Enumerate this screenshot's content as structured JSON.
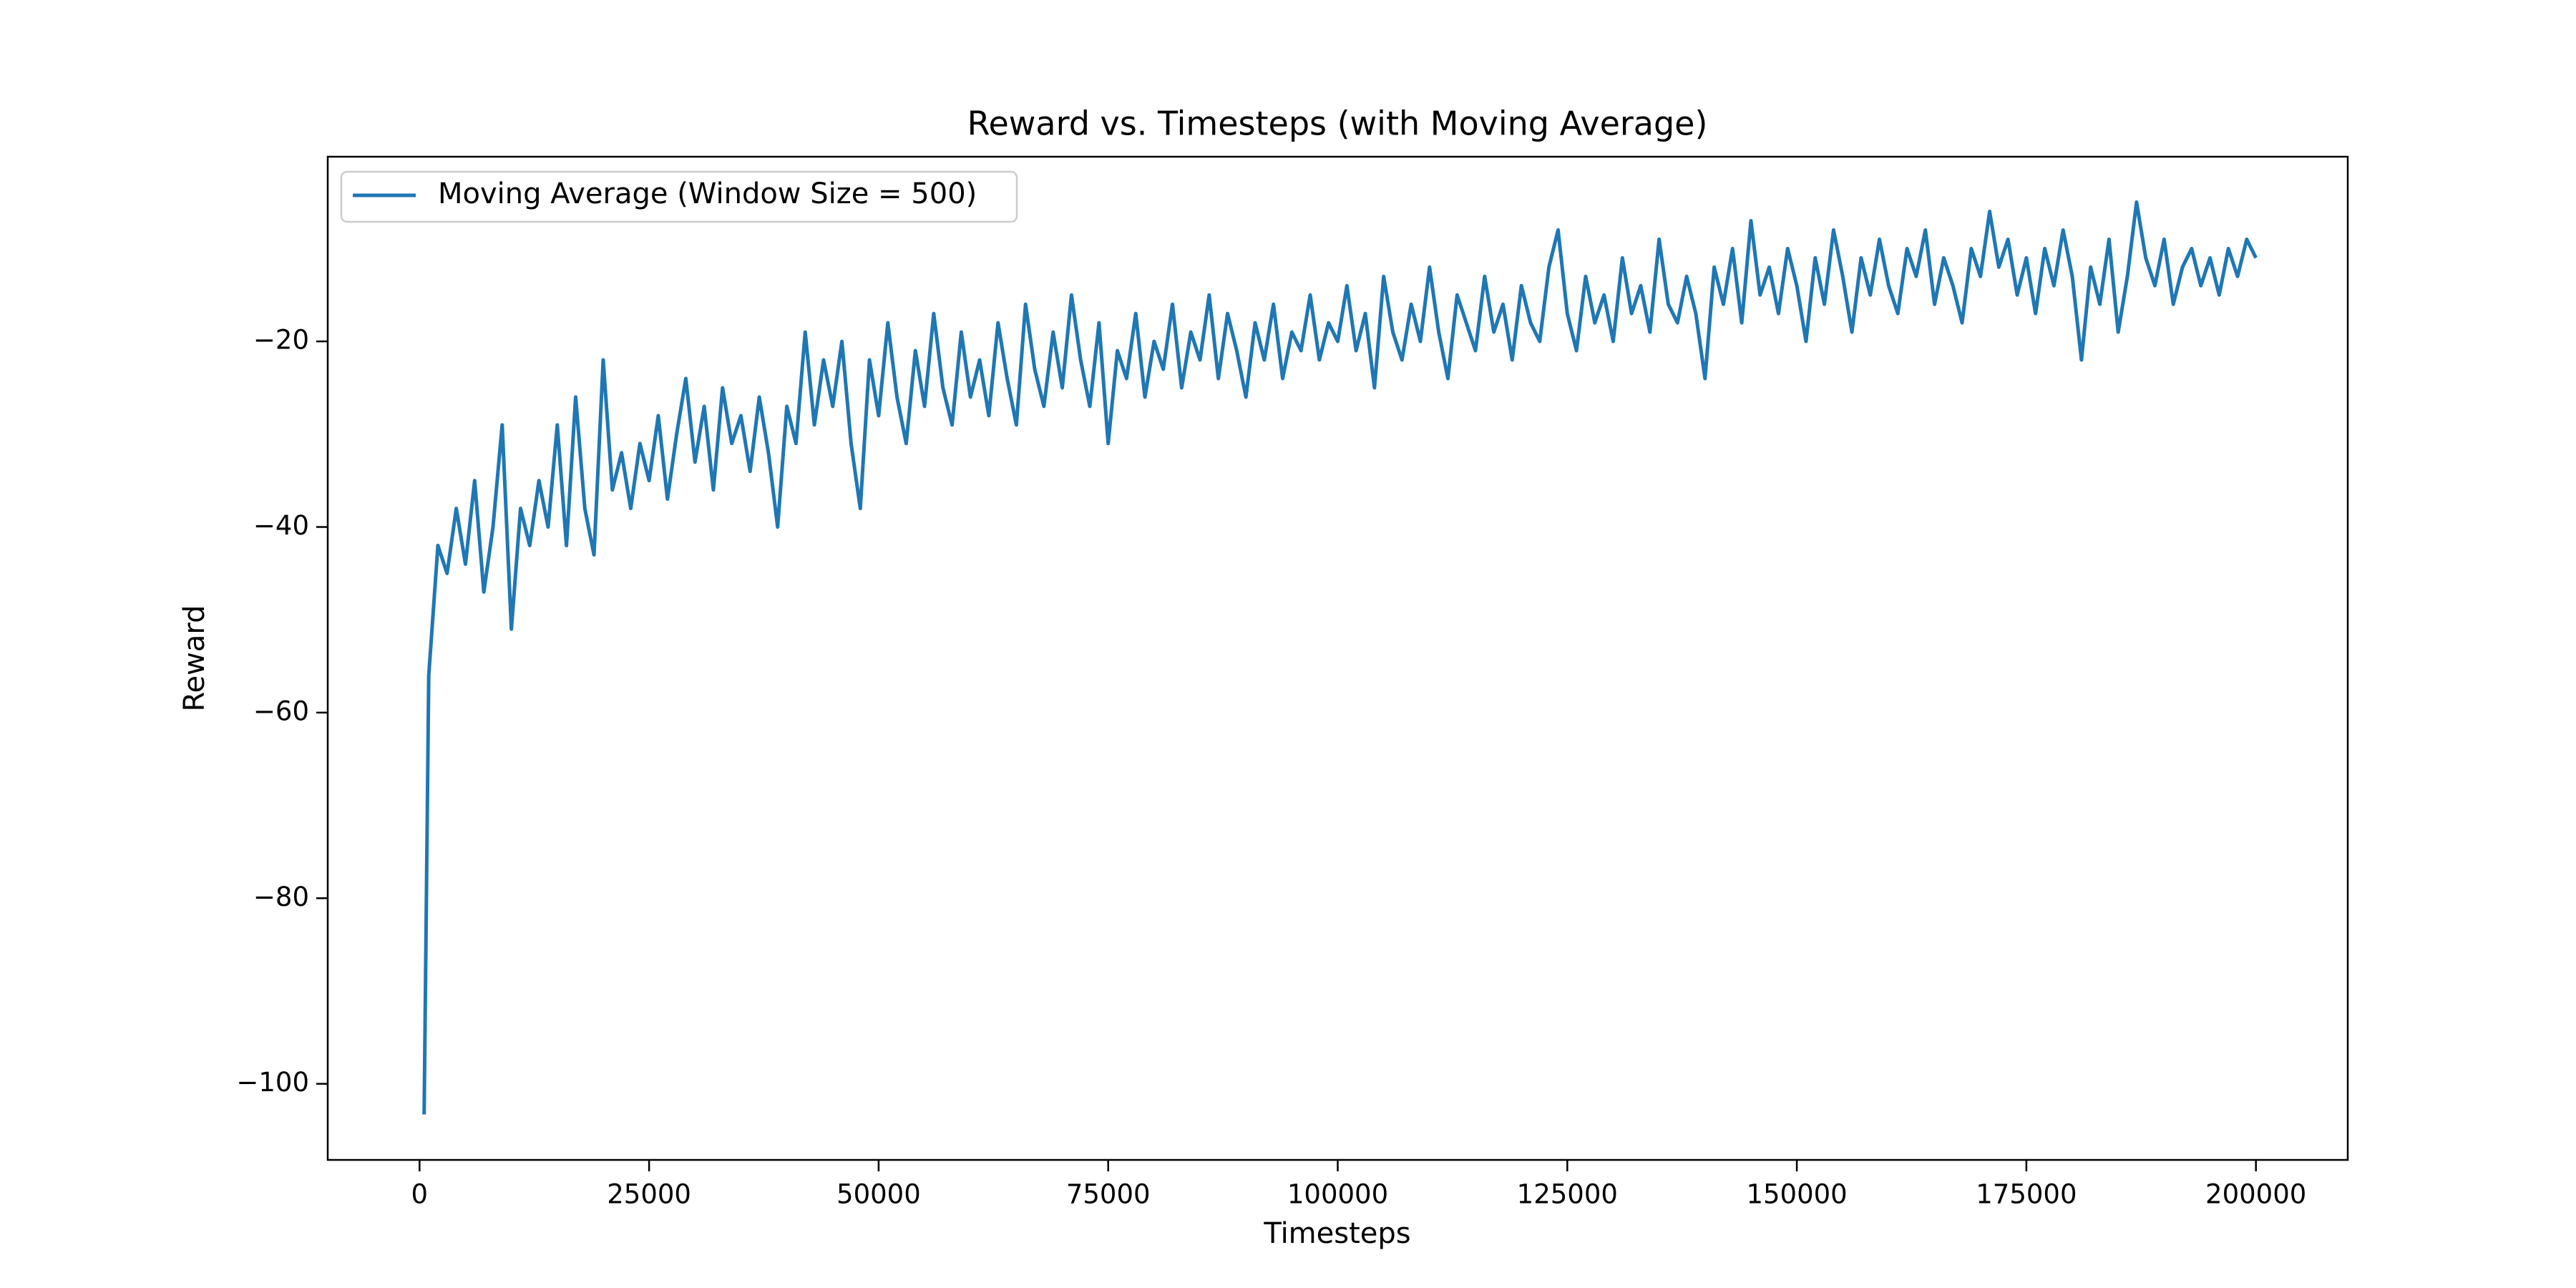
{
  "chart_data": {
    "type": "line",
    "title": "Reward vs. Timesteps (with Moving Average)",
    "x_label": "Timesteps",
    "y_label": "Reward",
    "legend": "upper left",
    "xlim": [
      -10000,
      210000
    ],
    "ylim": [
      -108.2,
      -0.1
    ],
    "xticks": [
      0,
      25000,
      50000,
      75000,
      100000,
      125000,
      150000,
      175000,
      200000
    ],
    "yticks": [
      {
        "value": -100,
        "label": "−100"
      },
      {
        "value": -80,
        "label": "−80"
      },
      {
        "value": -60,
        "label": "−60"
      },
      {
        "value": -40,
        "label": "−40"
      },
      {
        "value": -20,
        "label": "−20"
      }
    ],
    "x": [
      500,
      1000,
      2000,
      3000,
      4000,
      5000,
      6000,
      7000,
      8000,
      9000,
      10000,
      11000,
      12000,
      13000,
      14000,
      15000,
      16000,
      17000,
      18000,
      19000,
      20000,
      21000,
      22000,
      23000,
      24000,
      25000,
      26000,
      27000,
      28000,
      29000,
      30000,
      31000,
      32000,
      33000,
      34000,
      35000,
      36000,
      37000,
      38000,
      39000,
      40000,
      41000,
      42000,
      43000,
      44000,
      45000,
      46000,
      47000,
      48000,
      49000,
      50000,
      51000,
      52000,
      53000,
      54000,
      55000,
      56000,
      57000,
      58000,
      59000,
      60000,
      61000,
      62000,
      63000,
      64000,
      65000,
      66000,
      67000,
      68000,
      69000,
      70000,
      71000,
      72000,
      73000,
      74000,
      75000,
      76000,
      77000,
      78000,
      79000,
      80000,
      81000,
      82000,
      83000,
      84000,
      85000,
      86000,
      87000,
      88000,
      89000,
      90000,
      91000,
      92000,
      93000,
      94000,
      95000,
      96000,
      97000,
      98000,
      99000,
      100000,
      101000,
      102000,
      103000,
      104000,
      105000,
      106000,
      107000,
      108000,
      109000,
      110000,
      111000,
      112000,
      113000,
      114000,
      115000,
      116000,
      117000,
      118000,
      119000,
      120000,
      121000,
      122000,
      123000,
      124000,
      125000,
      126000,
      127000,
      128000,
      129000,
      130000,
      131000,
      132000,
      133000,
      134000,
      135000,
      136000,
      137000,
      138000,
      139000,
      140000,
      141000,
      142000,
      143000,
      144000,
      145000,
      146000,
      147000,
      148000,
      149000,
      150000,
      151000,
      152000,
      153000,
      154000,
      155000,
      156000,
      157000,
      158000,
      159000,
      160000,
      161000,
      162000,
      163000,
      164000,
      165000,
      166000,
      167000,
      168000,
      169000,
      170000,
      171000,
      172000,
      173000,
      174000,
      175000,
      176000,
      177000,
      178000,
      179000,
      180000,
      181000,
      182000,
      183000,
      184000,
      185000,
      186000,
      187000,
      188000,
      189000,
      190000,
      191000,
      192000,
      193000,
      194000,
      195000,
      196000,
      197000,
      198000,
      199000,
      200000
    ],
    "series": [
      {
        "name": "Moving Average (Window Size = 500)",
        "color": "#1f77b4",
        "values": [
          -103.3,
          -56,
          -42,
          -45,
          -38,
          -44,
          -35,
          -47,
          -40,
          -29,
          -51,
          -38,
          -42,
          -35,
          -40,
          -29,
          -42,
          -26,
          -38,
          -43,
          -22,
          -36,
          -32,
          -38,
          -31,
          -35,
          -28,
          -37,
          -30,
          -24,
          -33,
          -27,
          -36,
          -25,
          -31,
          -28,
          -34,
          -26,
          -32,
          -40,
          -27,
          -31,
          -19,
          -29,
          -22,
          -27,
          -20,
          -31,
          -38,
          -22,
          -28,
          -18,
          -26,
          -31,
          -21,
          -27,
          -17,
          -25,
          -29,
          -19,
          -26,
          -22,
          -28,
          -18,
          -24,
          -29,
          -16,
          -23,
          -27,
          -19,
          -25,
          -15,
          -22,
          -27,
          -18,
          -31,
          -21,
          -24,
          -17,
          -26,
          -20,
          -23,
          -16,
          -25,
          -19,
          -22,
          -15,
          -24,
          -17,
          -21,
          -26,
          -18,
          -22,
          -16,
          -24,
          -19,
          -21,
          -15,
          -22,
          -18,
          -20,
          -14,
          -21,
          -17,
          -25,
          -13,
          -19,
          -22,
          -16,
          -20,
          -12,
          -19,
          -24,
          -15,
          -18,
          -21,
          -13,
          -19,
          -16,
          -22,
          -14,
          -18,
          -20,
          -12,
          -8,
          -17,
          -21,
          -13,
          -18,
          -15,
          -20,
          -11,
          -17,
          -14,
          -19,
          -9,
          -16,
          -18,
          -13,
          -17,
          -24,
          -12,
          -16,
          -10,
          -18,
          -7,
          -15,
          -12,
          -17,
          -10,
          -14,
          -20,
          -11,
          -16,
          -8,
          -13,
          -19,
          -11,
          -15,
          -9,
          -14,
          -17,
          -10,
          -13,
          -8,
          -16,
          -11,
          -14,
          -18,
          -10,
          -13,
          -6,
          -12,
          -9,
          -15,
          -11,
          -17,
          -10,
          -14,
          -8,
          -13,
          -22,
          -12,
          -16,
          -9,
          -19,
          -13,
          -5,
          -11,
          -14,
          -9,
          -16,
          -12,
          -10,
          -14,
          -11,
          -15,
          -10,
          -13,
          -9,
          -11
        ]
      }
    ]
  }
}
